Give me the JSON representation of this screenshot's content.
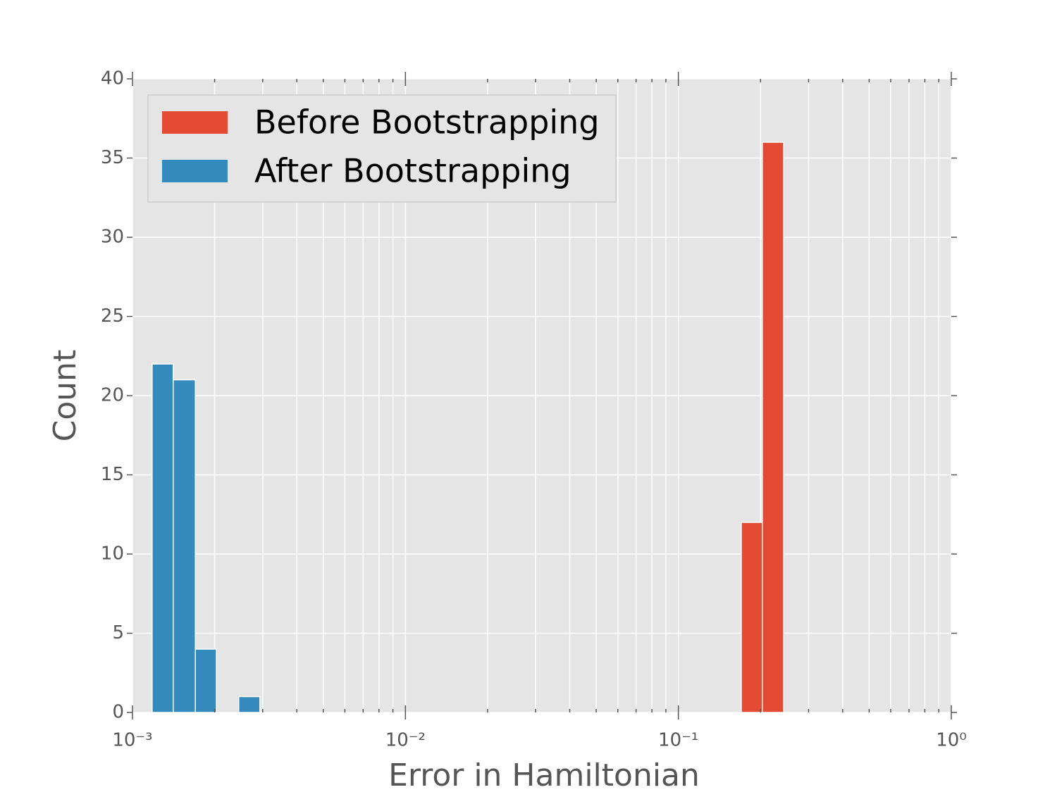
{
  "chart_data": {
    "type": "histogram",
    "xlabel": "Error in Hamiltonian",
    "ylabel": "Count",
    "xscale": "log",
    "xlim": [
      0.001,
      1
    ],
    "xticks": [
      {
        "value": 0.001,
        "label": "10⁻³"
      },
      {
        "value": 0.01,
        "label": "10⁻²"
      },
      {
        "value": 0.1,
        "label": "10⁻¹"
      },
      {
        "value": 1,
        "label": "10⁰"
      }
    ],
    "xminorticks": [
      0.002,
      0.003,
      0.004,
      0.005,
      0.006,
      0.007,
      0.008,
      0.009,
      0.02,
      0.03,
      0.04,
      0.05,
      0.06,
      0.07,
      0.08,
      0.09,
      0.2,
      0.3,
      0.4,
      0.5,
      0.6,
      0.7,
      0.8,
      0.9
    ],
    "ylim": [
      0,
      40
    ],
    "yticks": [
      0,
      5,
      10,
      15,
      20,
      25,
      30,
      35,
      40
    ],
    "grid": true,
    "legend": "upper left",
    "series": [
      {
        "name": "Before Bootstrapping",
        "color": "#e24a33",
        "bins": [
          0.17,
          0.203,
          0.243
        ],
        "values": [
          12,
          36
        ]
      },
      {
        "name": "After Bootstrapping",
        "color": "#348abd",
        "bins": [
          0.00118,
          0.00141,
          0.0017,
          0.00203,
          0.00245,
          0.00293
        ],
        "values": [
          22,
          21,
          4,
          0,
          1
        ]
      }
    ]
  }
}
